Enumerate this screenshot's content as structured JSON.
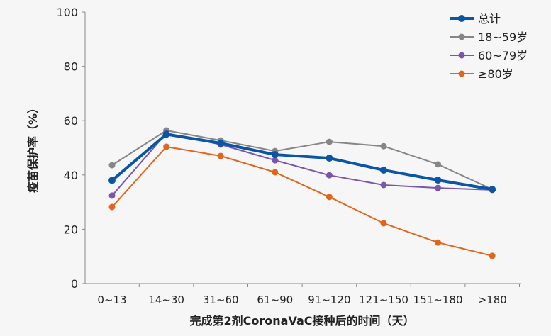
{
  "chart_data": {
    "type": "line",
    "title": "",
    "xlabel": "完成第2剂CoronaVaC接种后的时间（天）",
    "ylabel": "疫苗保护率（%）",
    "ylim": [
      0,
      100
    ],
    "yticks": [
      0,
      20,
      40,
      60,
      80,
      100
    ],
    "categories": [
      "0~13",
      "14~30",
      "31~60",
      "61~90",
      "91~120",
      "121~150",
      "151~180",
      ">180"
    ],
    "grid": false,
    "legend_position": "top-right",
    "series": [
      {
        "name": "总计",
        "color": "#0a56a4",
        "values": [
          38,
          55,
          51.7,
          47.5,
          46.2,
          41.8,
          38.1,
          34.7
        ]
      },
      {
        "name": "18~59岁",
        "color": "#868686",
        "values": [
          43.6,
          56.4,
          52.7,
          48.8,
          52.2,
          50.6,
          43.9,
          34.7
        ]
      },
      {
        "name": "60~79岁",
        "color": "#7a55ac",
        "values": [
          32.4,
          55.4,
          51.2,
          45.4,
          39.9,
          36.3,
          35.2,
          34.5
        ]
      },
      {
        "name": "≥80岁",
        "color": "#e0661e",
        "values": [
          28.2,
          50.4,
          47,
          41,
          31.9,
          22.2,
          15.1,
          10.2
        ]
      }
    ]
  }
}
